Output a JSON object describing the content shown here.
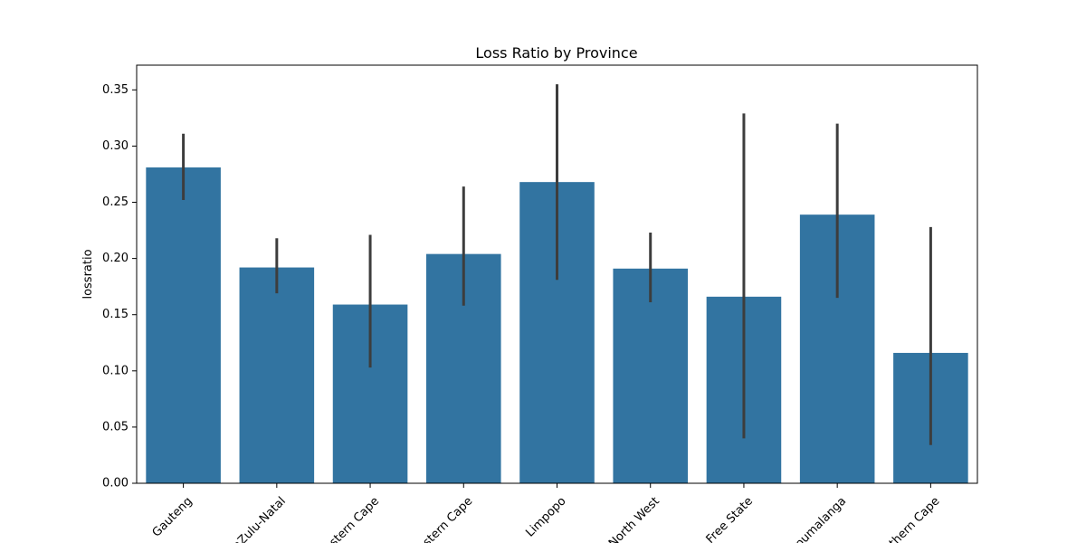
{
  "chart_data": {
    "type": "bar",
    "title": "Loss Ratio by Province",
    "xlabel": "",
    "ylabel": "lossratio",
    "categories": [
      "Gauteng",
      "KwaZulu-Natal",
      "Western Cape",
      "Eastern Cape",
      "Limpopo",
      "North West",
      "Free State",
      "Mpumalanga",
      "Northern Cape"
    ],
    "values": [
      0.281,
      0.192,
      0.159,
      0.204,
      0.268,
      0.191,
      0.166,
      0.239,
      0.116
    ],
    "error_low": [
      0.252,
      0.169,
      0.103,
      0.158,
      0.181,
      0.161,
      0.04,
      0.165,
      0.034
    ],
    "error_high": [
      0.311,
      0.218,
      0.221,
      0.264,
      0.355,
      0.223,
      0.329,
      0.32,
      0.228
    ],
    "ylim": [
      0,
      0.372
    ],
    "yticks": [
      "0.00",
      "0.05",
      "0.10",
      "0.15",
      "0.20",
      "0.25",
      "0.30",
      "0.35"
    ],
    "grid": false,
    "legend": "none",
    "colors": {
      "bar": "#3274a1",
      "error": "#3d3d3d",
      "axis": "#000000"
    }
  }
}
